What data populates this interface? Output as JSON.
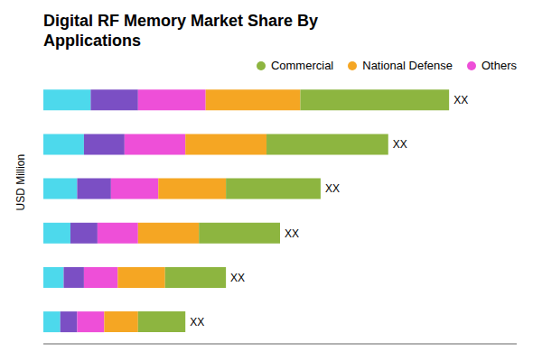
{
  "chart_data": {
    "type": "bar",
    "title": "Digital RF Memory Market Share By\nApplications",
    "ylabel": "USD Million",
    "orientation": "horizontal",
    "stacked": true,
    "categories": [
      null,
      null,
      null,
      null,
      null,
      null
    ],
    "series": [
      {
        "color": "#4DD9EC",
        "values": [
          0.07,
          0.06,
          0.05,
          0.04,
          0.03,
          0.025
        ]
      },
      {
        "color": "#7B4FC4",
        "values": [
          0.07,
          0.06,
          0.05,
          0.04,
          0.03,
          0.025
        ]
      },
      {
        "name": "Others",
        "color": "#EE4FD8",
        "values": [
          0.1,
          0.09,
          0.07,
          0.06,
          0.05,
          0.04
        ]
      },
      {
        "name": "National Defense",
        "color": "#F5A623",
        "values": [
          0.14,
          0.12,
          0.1,
          0.09,
          0.07,
          0.05
        ]
      },
      {
        "name": "Commercial",
        "color": "#8DB540",
        "values": [
          0.22,
          0.18,
          0.14,
          0.12,
          0.09,
          0.07
        ]
      }
    ],
    "annotations": [
      "XX",
      "XX",
      "XX",
      "XX",
      "XX",
      "XX"
    ],
    "xlim": [
      0,
      0.7
    ],
    "grid": false,
    "legend": "upper right",
    "tick_labels": false
  }
}
